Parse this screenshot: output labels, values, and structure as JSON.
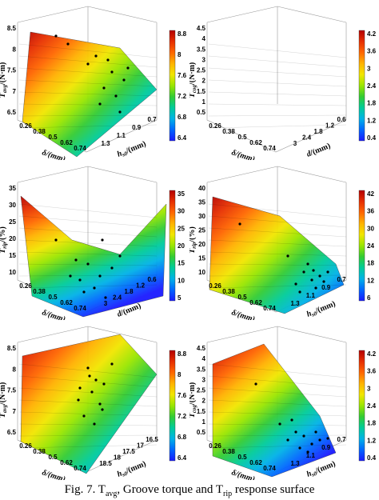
{
  "caption": {
    "prefix": "Fig. 7. T",
    "sub1": "avg",
    "middle": ", Groove torque and T",
    "sub2": "rip",
    "suffix": " response surface"
  },
  "panels": [
    {
      "id": "p1",
      "zlabel": "T",
      "zsub": "avg",
      "zunit": "/(N·m)",
      "zticks": [
        "8.5",
        "8",
        "7.5",
        "7",
        "6.5"
      ],
      "xlabel": "δ/(mm)",
      "xticks": [
        "0.26",
        "0.38",
        "0.5",
        "0.62",
        "0.74"
      ],
      "ylabel": "h",
      "ysub": "s0",
      "yunit": "/(mm)",
      "yticks": [
        "1.3",
        "1.1",
        "0.9",
        "0.7"
      ],
      "cbar": [
        "8.8",
        "8",
        "7.6",
        "7.2",
        "6.8",
        "6.4"
      ]
    },
    {
      "id": "p2",
      "zlabel": "T",
      "zsub": "cog",
      "zunit": "/(N·m)",
      "zticks": [
        "4.5",
        "4",
        "3.5",
        "3",
        "2.5",
        "2",
        "1.5",
        "1",
        "0.5"
      ],
      "xlabel": "δ/(mm)",
      "xticks": [
        "0.26",
        "0.38",
        "0.5",
        "0.62",
        "0.74"
      ],
      "ylabel": "d",
      "ysub": "",
      "yunit": "/(mm)",
      "yticks": [
        "3",
        "2.4",
        "1.8",
        "1.2",
        "0.6"
      ],
      "cbar": [
        "4.2",
        "3.6",
        "3",
        "2.4",
        "1.8",
        "1.2",
        "0.4"
      ]
    },
    {
      "id": "p3",
      "zlabel": "T",
      "zsub": "rip",
      "zunit": "/(%)",
      "zticks": [
        "35",
        "30",
        "25",
        "20",
        "15",
        "10"
      ],
      "xlabel": "δ/(mm)",
      "xticks": [
        "0.26",
        "0.38",
        "0.5",
        "0.62",
        "0.74"
      ],
      "ylabel": "d",
      "ysub": "",
      "yunit": "/(mm)",
      "yticks": [
        "3",
        "2.4",
        "1.8",
        "1.2",
        "0.6"
      ],
      "cbar": [
        "35",
        "30",
        "25",
        "20",
        "15",
        "10",
        "5"
      ]
    },
    {
      "id": "p4",
      "zlabel": "T",
      "zsub": "rip",
      "zunit": "/(%)",
      "zticks": [
        "40",
        "35",
        "30",
        "25",
        "20",
        "15",
        "10"
      ],
      "xlabel": "δ/(mm)",
      "xticks": [
        "0.26",
        "0.38",
        "0.5",
        "0.62",
        "0.74"
      ],
      "ylabel": "h",
      "ysub": "s0",
      "yunit": "/(mm)",
      "yticks": [
        "1.3",
        "1.1",
        "0.9",
        "0.7"
      ],
      "cbar": [
        "42",
        "36",
        "30",
        "24",
        "18",
        "12",
        "6"
      ]
    },
    {
      "id": "p5",
      "zlabel": "T",
      "zsub": "avg",
      "zunit": "/(N·m)",
      "zticks": [
        "8.5",
        "8",
        "7.5",
        "7",
        "6.5"
      ],
      "xlabel": "δ/(mm)",
      "xticks": [
        "0.26",
        "0.38",
        "0.5",
        "0.62",
        "0.74"
      ],
      "ylabel": "h",
      "ysub": "s0",
      "yunit": "/(mm)",
      "yticks": [
        "18.5",
        "18",
        "17.5",
        "17",
        "16.5"
      ],
      "cbar": [
        "8.8",
        "8",
        "7.6",
        "7.2",
        "6.8",
        "6.4"
      ]
    },
    {
      "id": "p6",
      "zlabel": "T",
      "zsub": "cog",
      "zunit": "/(N·m)",
      "zticks": [
        "4.5",
        "4",
        "3.5",
        "3",
        "2.5",
        "2",
        "1.5",
        "1",
        "0.5"
      ],
      "xlabel": "δ/(mm)",
      "xticks": [
        "0.26",
        "0.38",
        "0.5",
        "0.62",
        "0.74"
      ],
      "ylabel": "h",
      "ysub": "s0",
      "yunit": "/(mm)",
      "yticks": [
        "1.3",
        "1.1",
        "0.9",
        "0.7"
      ],
      "cbar": [
        "4.2",
        "3.6",
        "3",
        "2.4",
        "1.8",
        "1.2",
        "0.4"
      ]
    }
  ]
}
